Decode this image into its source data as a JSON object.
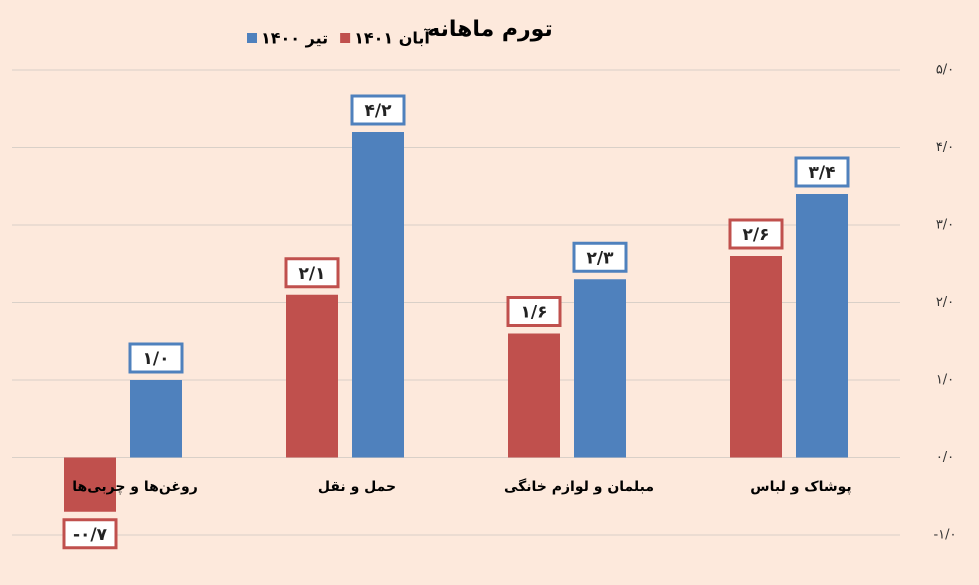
{
  "chart_data": {
    "type": "bar",
    "title": "تورم ماهانه",
    "categories": [
      "روغن‌ها و چربی‌ها",
      "حمل و نقل",
      "مبلمان و لوازم خانگی",
      "پوشاک و لباس"
    ],
    "series": [
      {
        "name": "آبان ۱۴۰۱",
        "color": "#c0504d",
        "values": [
          -0.7,
          2.1,
          1.6,
          2.6
        ],
        "value_labels": [
          "-۰/۷",
          "۲/۱",
          "۱/۶",
          "۲/۶"
        ]
      },
      {
        "name": "تیر ۱۴۰۰",
        "color": "#4f81bd",
        "values": [
          1.0,
          4.2,
          2.3,
          3.4
        ],
        "value_labels": [
          "۱/۰",
          "۴/۲",
          "۲/۳",
          "۳/۴"
        ]
      }
    ],
    "ylim": [
      -1,
      5
    ],
    "yticks": [
      {
        "value": -1,
        "label": "-۱/۰"
      },
      {
        "value": 0,
        "label": "۰/۰"
      },
      {
        "value": 1,
        "label": "۱/۰"
      },
      {
        "value": 2,
        "label": "۲/۰"
      },
      {
        "value": 3,
        "label": "۳/۰"
      },
      {
        "value": 4,
        "label": "۴/۰"
      },
      {
        "value": 5,
        "label": "۵/۰"
      }
    ],
    "grid": true,
    "legend": "top"
  }
}
